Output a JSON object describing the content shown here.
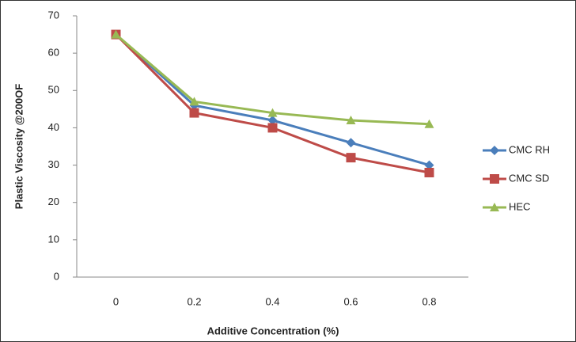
{
  "chart_data": {
    "type": "line",
    "xlabel": "Additive Concentration (%)",
    "ylabel": "Plastic Viscosity @200OF",
    "categories": [
      "0",
      "0.2",
      "0.4",
      "0.6",
      "0.8"
    ],
    "series": [
      {
        "name": "CMC RH",
        "color": "#4a7ebb",
        "marker": "diamond",
        "values": [
          65,
          46,
          42,
          36,
          30
        ]
      },
      {
        "name": "CMC SD",
        "color": "#be4b48",
        "marker": "square",
        "values": [
          65,
          44,
          40,
          32,
          28
        ]
      },
      {
        "name": "HEC",
        "color": "#98b954",
        "marker": "triangle",
        "values": [
          65,
          47,
          44,
          42,
          41
        ]
      }
    ],
    "ylim": [
      0,
      70
    ],
    "yticks": [
      0,
      10,
      20,
      30,
      40,
      50,
      60,
      70
    ],
    "grid": false,
    "legend": "right"
  }
}
